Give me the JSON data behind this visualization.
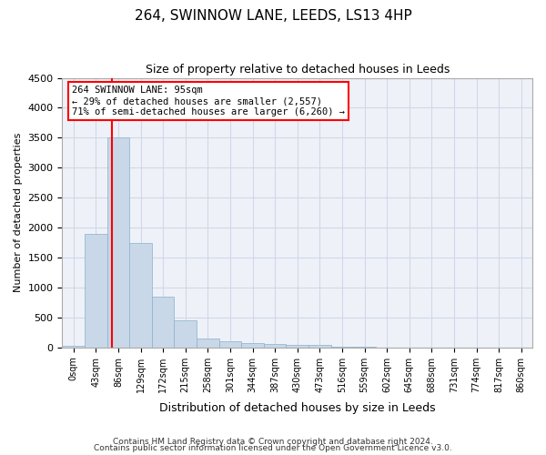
{
  "title": "264, SWINNOW LANE, LEEDS, LS13 4HP",
  "subtitle": "Size of property relative to detached houses in Leeds",
  "xlabel": "Distribution of detached houses by size in Leeds",
  "ylabel": "Number of detached properties",
  "bar_color": "#c8d8e8",
  "bar_edge_color": "#8ab0cc",
  "grid_color": "#d0d8e8",
  "bin_labels": [
    "0sqm",
    "43sqm",
    "86sqm",
    "129sqm",
    "172sqm",
    "215sqm",
    "258sqm",
    "301sqm",
    "344sqm",
    "387sqm",
    "430sqm",
    "473sqm",
    "516sqm",
    "559sqm",
    "602sqm",
    "645sqm",
    "688sqm",
    "731sqm",
    "774sqm",
    "817sqm",
    "860sqm"
  ],
  "bar_heights": [
    30,
    1900,
    3500,
    1750,
    850,
    450,
    150,
    100,
    75,
    60,
    50,
    40,
    10,
    5,
    3,
    2,
    1,
    1,
    0,
    0,
    0
  ],
  "ylim": [
    0,
    4500
  ],
  "yticks": [
    0,
    500,
    1000,
    1500,
    2000,
    2500,
    3000,
    3500,
    4000,
    4500
  ],
  "red_line_x": 2.21,
  "annotation_text": "264 SWINNOW LANE: 95sqm\n← 29% of detached houses are smaller (2,557)\n71% of semi-detached houses are larger (6,260) →",
  "footnote1": "Contains HM Land Registry data © Crown copyright and database right 2024.",
  "footnote2": "Contains public sector information licensed under the Open Government Licence v3.0.",
  "background_color": "#ffffff",
  "plot_bg_color": "#eef2f8"
}
